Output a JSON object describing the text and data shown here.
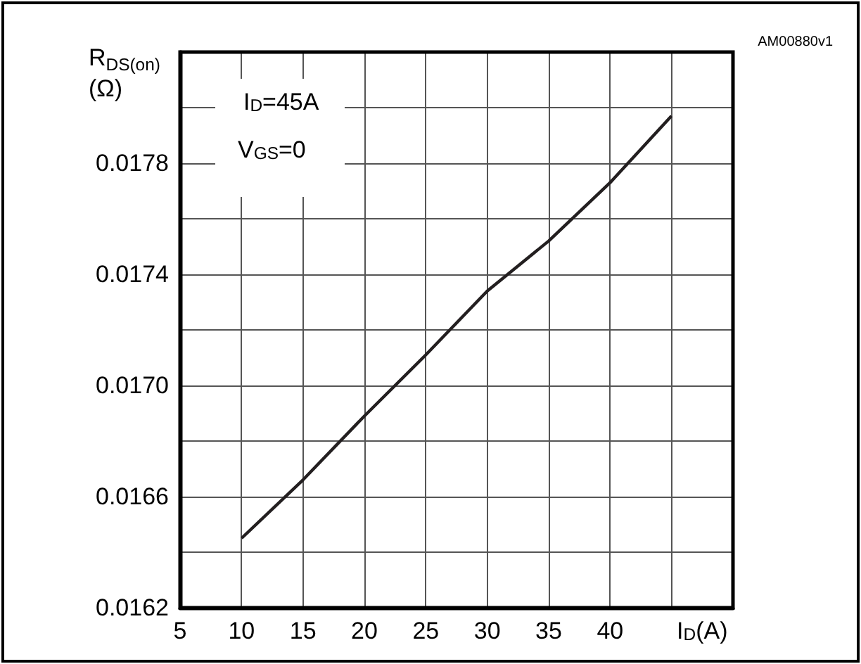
{
  "chart_data": {
    "type": "line",
    "xlabel": "I$_{D}$(A)",
    "ylabel": "R$_{DS(on)}$\n(Ω)",
    "annotations": [
      "I$_{D}$=45A",
      "V$_{GS}$=0",
      "AM00880v1"
    ],
    "x": [
      10,
      15,
      20,
      25,
      30,
      35,
      40,
      45
    ],
    "series": [
      {
        "color": "#231f20",
        "values": [
          0.01645,
          0.01666,
          0.01689,
          0.01711,
          0.01734,
          0.01752,
          0.01773,
          0.01797
        ]
      }
    ],
    "xlim": [
      5,
      50
    ],
    "xticks": [
      5,
      10,
      15,
      20,
      25,
      30,
      35,
      40,
      {
        "value": 45,
        "label": null
      },
      {
        "value": 50,
        "label": null
      }
    ],
    "ylim": [
      0.0162,
      0.0182
    ],
    "yticks": [
      0.0162,
      {
        "value": 0.0164,
        "label": null
      },
      0.0166,
      {
        "value": 0.0168,
        "label": null
      },
      {
        "value": 0.017,
        "label": "0.0170"
      },
      {
        "value": 0.0172,
        "label": null
      },
      0.0174,
      {
        "value": 0.0176,
        "label": null
      },
      0.0178,
      {
        "value": 0.018,
        "label": null
      },
      {
        "value": 0.0182,
        "label": null
      }
    ],
    "grid": true,
    "marker": "none",
    "line_style": "solid"
  }
}
